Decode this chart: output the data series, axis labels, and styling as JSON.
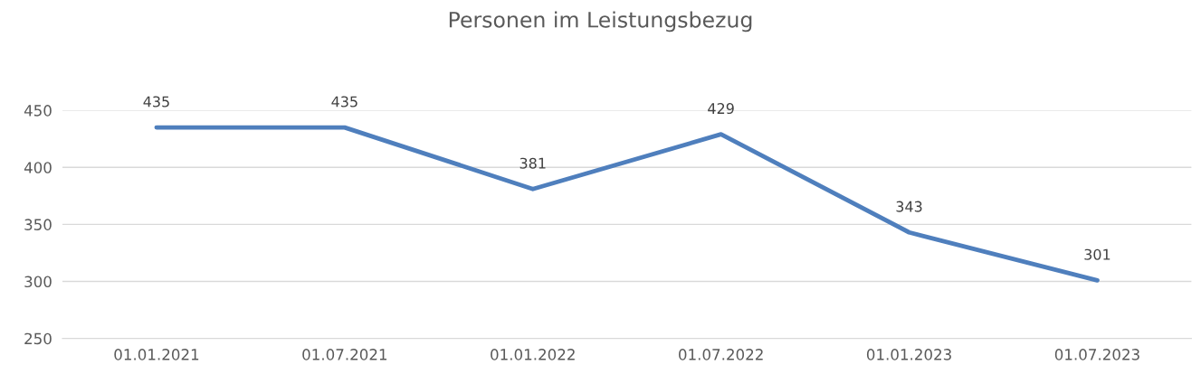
{
  "chart_data": {
    "type": "line",
    "title": "Personen im Leistungsbezug",
    "categories": [
      "01.01.2021",
      "01.07.2021",
      "01.01.2022",
      "01.07.2022",
      "01.01.2023",
      "01.07.2023"
    ],
    "series": [
      {
        "color": "#4f7fbd",
        "values": [
          435,
          435,
          381,
          429,
          343,
          301
        ]
      }
    ],
    "ylim": [
      250,
      450
    ],
    "yticks": [
      250,
      300,
      350,
      400,
      450
    ],
    "grid": "y",
    "data_labels": true,
    "marker": "none",
    "line_style": "solid"
  }
}
